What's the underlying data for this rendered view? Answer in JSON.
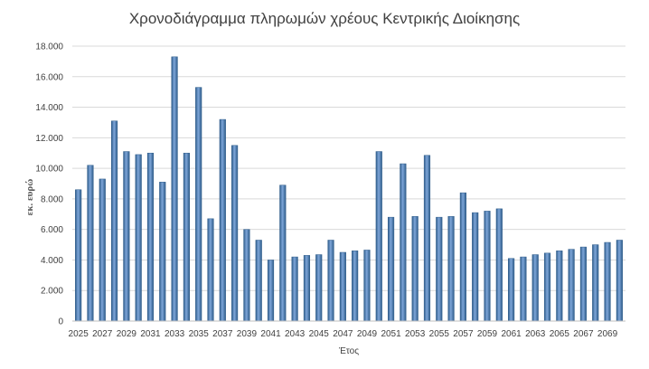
{
  "chart_data": {
    "type": "bar",
    "title": "Χρονοδιάγραμμα πληρωμών χρέους Κεντρικής Διοίκησης",
    "xlabel": "Έτος",
    "ylabel": "εκ. ευρώ",
    "ylim": [
      0,
      18000
    ],
    "yticks": [
      0,
      2000,
      4000,
      6000,
      8000,
      10000,
      12000,
      14000,
      16000,
      18000
    ],
    "ytick_labels": [
      "0",
      "2.000",
      "4.000",
      "6.000",
      "8.000",
      "10.000",
      "12.000",
      "14.000",
      "16.000",
      "18.000"
    ],
    "grid": true,
    "legend": "none",
    "categories": [
      "2025",
      "2026",
      "2027",
      "2028",
      "2029",
      "2030",
      "2031",
      "2032",
      "2033",
      "2034",
      "2035",
      "2036",
      "2037",
      "2038",
      "2039",
      "2040",
      "2041",
      "2042",
      "2043",
      "2044",
      "2045",
      "2046",
      "2047",
      "2048",
      "2049",
      "2050",
      "2051",
      "2052",
      "2053",
      "2054",
      "2055",
      "2056",
      "2057",
      "2058",
      "2059",
      "2060",
      "2061",
      "2062",
      "2063",
      "2064",
      "2065",
      "2066",
      "2067",
      "2068",
      "2069",
      "2070"
    ],
    "xtick_labels": [
      "2025",
      "",
      "2027",
      "",
      "2029",
      "",
      "2031",
      "",
      "2033",
      "",
      "2035",
      "",
      "2037",
      "",
      "2039",
      "",
      "2041",
      "",
      "2043",
      "",
      "2045",
      "",
      "2047",
      "",
      "2049",
      "",
      "2051",
      "",
      "2053",
      "",
      "2055",
      "",
      "2057",
      "",
      "2059",
      "",
      "2061",
      "",
      "2063",
      "",
      "2065",
      "",
      "2067",
      "",
      "2069",
      ""
    ],
    "values": [
      8600,
      10200,
      9300,
      13100,
      11100,
      10900,
      11000,
      9100,
      17300,
      11000,
      15300,
      6700,
      13200,
      11500,
      6000,
      5300,
      4000,
      8900,
      4200,
      4300,
      4350,
      5300,
      4500,
      4600,
      4650,
      11100,
      6800,
      10300,
      6850,
      10850,
      6800,
      6850,
      8400,
      7100,
      7200,
      7350,
      4100,
      4200,
      4350,
      4450,
      4600,
      4700,
      4850,
      5000,
      5150,
      5300
    ],
    "colors": {
      "bar": "#4f81bd",
      "bar_dark": "#2e5c8a",
      "bar_light": "#7ea6d9",
      "grid": "#d9d9d9",
      "text": "#404040"
    }
  }
}
